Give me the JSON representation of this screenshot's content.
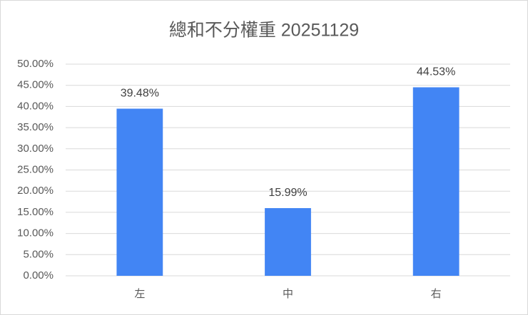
{
  "chart_data": {
    "type": "bar",
    "title": "總和不分權重 20251129",
    "categories": [
      "左",
      "中",
      "右"
    ],
    "values": [
      39.48,
      15.99,
      44.53
    ],
    "value_labels": [
      "39.48%",
      "15.99%",
      "44.53%"
    ],
    "color": "#4285f4",
    "ylim": [
      0,
      50
    ],
    "yticks": [
      {
        "value": 0,
        "label": "0.00%"
      },
      {
        "value": 5,
        "label": "5.00%"
      },
      {
        "value": 10,
        "label": "10.00%"
      },
      {
        "value": 15,
        "label": "15.00%"
      },
      {
        "value": 20,
        "label": "20.00%"
      },
      {
        "value": 25,
        "label": "25.00%"
      },
      {
        "value": 30,
        "label": "30.00%"
      },
      {
        "value": 35,
        "label": "35.00%"
      },
      {
        "value": 40,
        "label": "40.00%"
      },
      {
        "value": 45,
        "label": "45.00%"
      },
      {
        "value": 50,
        "label": "50.00%"
      }
    ],
    "grid": true
  }
}
